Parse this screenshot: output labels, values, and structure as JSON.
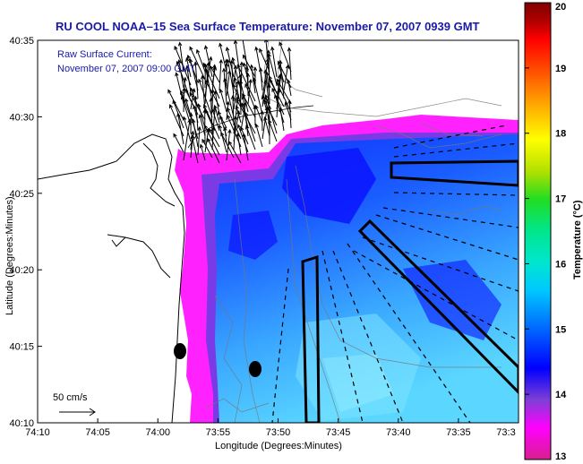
{
  "title": "RU COOL  NOAA–15  Sea Surface Temperature:  November 07, 2007 0939 GMT",
  "current_label_1": "Raw Surface Current:",
  "current_label_2": "November 07, 2007 09:00 GMT",
  "scale_label": "50 cm/s",
  "x_axis": {
    "label": "Longitude (Degrees:Minutes)",
    "ticks": [
      "74:10",
      "74:05",
      "74:00",
      "73:55",
      "73:50",
      "73:45",
      "73:40",
      "73:35",
      "73:3"
    ]
  },
  "y_axis": {
    "label": "Latitude (Degrees:Minutes)",
    "ticks": [
      "40:35",
      "40:30",
      "40:25",
      "40:20",
      "40:15",
      "40:10"
    ]
  },
  "colorbar": {
    "label": "Temperature (°C)",
    "min": 13,
    "max": 20,
    "ticks": [
      "20",
      "19",
      "18",
      "17",
      "16",
      "15",
      "14",
      "13"
    ],
    "colors": [
      "#d81f8e",
      "#ff00ff",
      "#7f3fd6",
      "#0000ff",
      "#0060ff",
      "#00c8ff",
      "#00e6d0",
      "#00e68c",
      "#22dd22",
      "#b0e000",
      "#ffff00",
      "#ffb000",
      "#ff5000",
      "#ff0000",
      "#b00000",
      "#800000"
    ]
  },
  "colors": {
    "title": "#1a1aa8",
    "land": "#ffffff",
    "cold_edge": "#ff1aff",
    "water_dark": "#1a1aff",
    "water_light": "#4ab8ff"
  }
}
